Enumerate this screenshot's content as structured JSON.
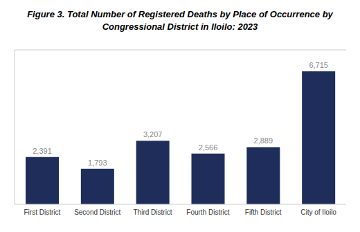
{
  "chart_data": {
    "type": "bar",
    "title": "Figure 3. Total Number of Registered Deaths by Place of Occurrence by\nCongressional District in Iloilo: 2023",
    "categories": [
      "First District",
      "Second District",
      "Third District",
      "Fourth District",
      "Fifth District",
      "City of Iloilo"
    ],
    "values": [
      2391,
      1793,
      3207,
      2566,
      2889,
      6715
    ],
    "value_labels": [
      "2,391",
      "1,793",
      "3,207",
      "2,566",
      "2,889",
      "6,715"
    ],
    "color": "#1e2d5a",
    "ylim": [
      0,
      7800
    ],
    "data_labels": true,
    "tick_labels": "x",
    "grid": false
  }
}
